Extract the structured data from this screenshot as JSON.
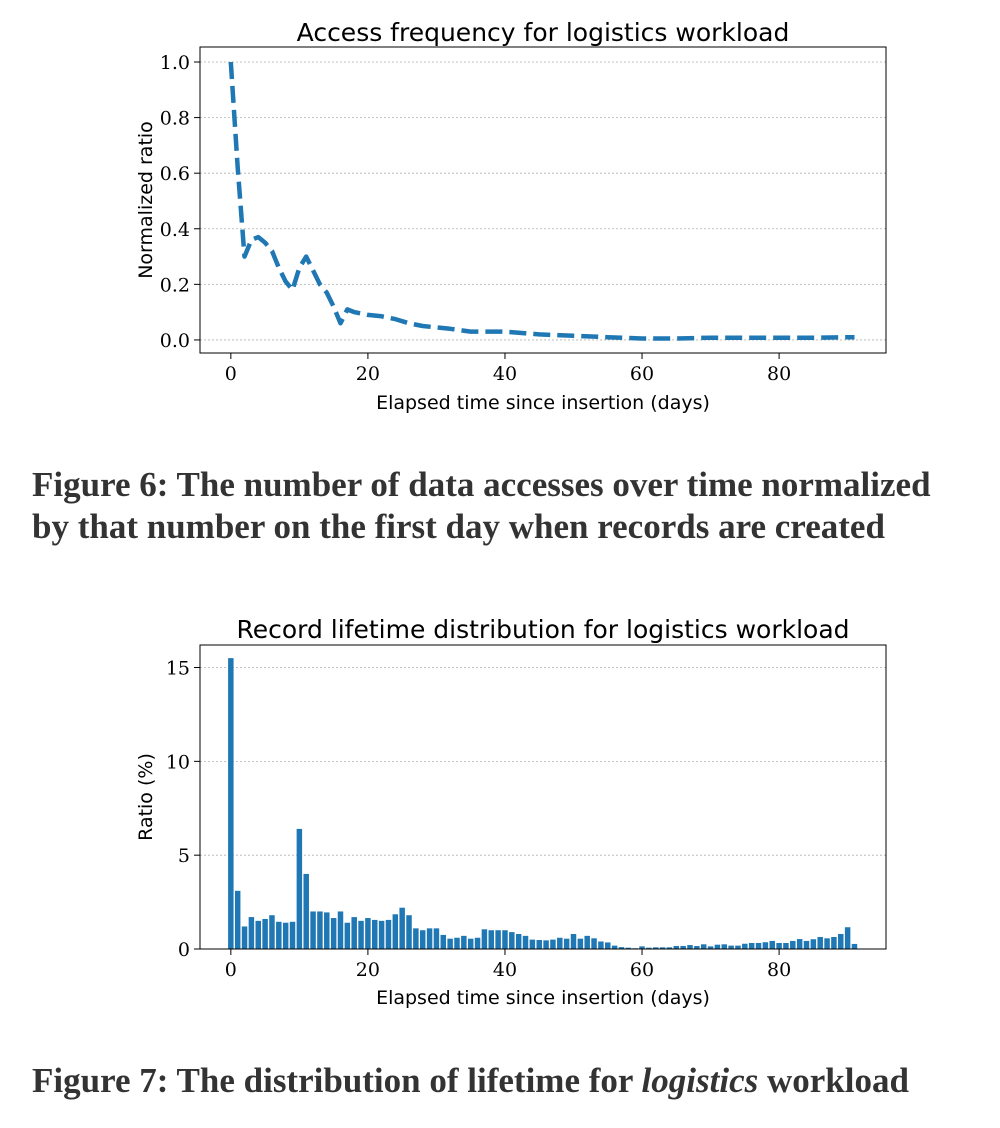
{
  "captions": {
    "fig6_line1": "Figure 6: The number of data accesses over time normalized",
    "fig6_line2": "by that number on the first day when records are created",
    "fig7_prefix": "Figure 7: The distribution of lifetime for ",
    "fig7_italic": "logistics",
    "fig7_suffix": " workload"
  },
  "colors": {
    "series": "#1f77b4",
    "grid": "#b0b0b0"
  },
  "chart_data": [
    {
      "type": "line",
      "title": "Access frequency for logistics workload",
      "xlabel": "Elapsed time since insertion (days)",
      "ylabel": "Normalized ratio",
      "xlim": [
        -4.5,
        95.6
      ],
      "ylim": [
        -0.047,
        1.054
      ],
      "xticks": [
        0,
        20,
        40,
        60,
        80
      ],
      "yticks": [
        0.0,
        0.2,
        0.4,
        0.6,
        0.8,
        1.0
      ],
      "ytick_labels": [
        "0.0",
        "0.2",
        "0.4",
        "0.6",
        "0.8",
        "1.0"
      ],
      "grid": "y",
      "line_style": "dashed",
      "x": [
        0,
        1,
        2,
        3,
        4,
        5,
        6,
        7,
        8,
        9,
        10,
        11,
        12,
        13,
        14,
        15,
        16,
        17,
        18,
        20,
        22,
        24,
        26,
        28,
        30,
        32,
        35,
        40,
        45,
        50,
        55,
        60,
        65,
        70,
        75,
        80,
        85,
        90,
        91
      ],
      "y": [
        1.0,
        0.62,
        0.3,
        0.36,
        0.37,
        0.35,
        0.32,
        0.26,
        0.21,
        0.18,
        0.26,
        0.3,
        0.25,
        0.2,
        0.17,
        0.12,
        0.06,
        0.11,
        0.1,
        0.09,
        0.085,
        0.075,
        0.06,
        0.05,
        0.045,
        0.04,
        0.03,
        0.03,
        0.02,
        0.015,
        0.01,
        0.005,
        0.005,
        0.008,
        0.008,
        0.008,
        0.008,
        0.01,
        0.01
      ]
    },
    {
      "type": "bar",
      "title": "Record lifetime distribution for logistics workload",
      "xlabel": "Elapsed time since insertion (days)",
      "ylabel": "Ratio (%)",
      "xlim": [
        -4.5,
        95.6
      ],
      "ylim": [
        0,
        16.2
      ],
      "xticks": [
        0,
        20,
        40,
        60,
        80
      ],
      "yticks": [
        0,
        5,
        10,
        15
      ],
      "ytick_labels": [
        "0",
        "5",
        "10",
        "15"
      ],
      "grid": "y",
      "values": [
        15.5,
        3.1,
        1.2,
        1.7,
        1.5,
        1.6,
        1.8,
        1.45,
        1.4,
        1.45,
        6.4,
        4.0,
        2.0,
        2.0,
        1.95,
        1.65,
        2.0,
        1.4,
        1.7,
        1.5,
        1.65,
        1.55,
        1.5,
        1.55,
        1.85,
        2.2,
        1.8,
        1.1,
        1.0,
        1.1,
        1.1,
        0.75,
        0.55,
        0.6,
        0.7,
        0.55,
        0.6,
        1.05,
        1.0,
        1.0,
        1.0,
        0.9,
        0.8,
        0.7,
        0.5,
        0.48,
        0.46,
        0.5,
        0.6,
        0.55,
        0.8,
        0.55,
        0.7,
        0.57,
        0.4,
        0.35,
        0.18,
        0.1,
        0.07,
        0.04,
        0.14,
        0.07,
        0.09,
        0.09,
        0.09,
        0.16,
        0.16,
        0.21,
        0.16,
        0.25,
        0.14,
        0.23,
        0.25,
        0.18,
        0.18,
        0.28,
        0.32,
        0.32,
        0.36,
        0.43,
        0.32,
        0.32,
        0.43,
        0.53,
        0.43,
        0.52,
        0.64,
        0.57,
        0.64,
        0.8,
        1.16,
        0.27
      ]
    }
  ]
}
